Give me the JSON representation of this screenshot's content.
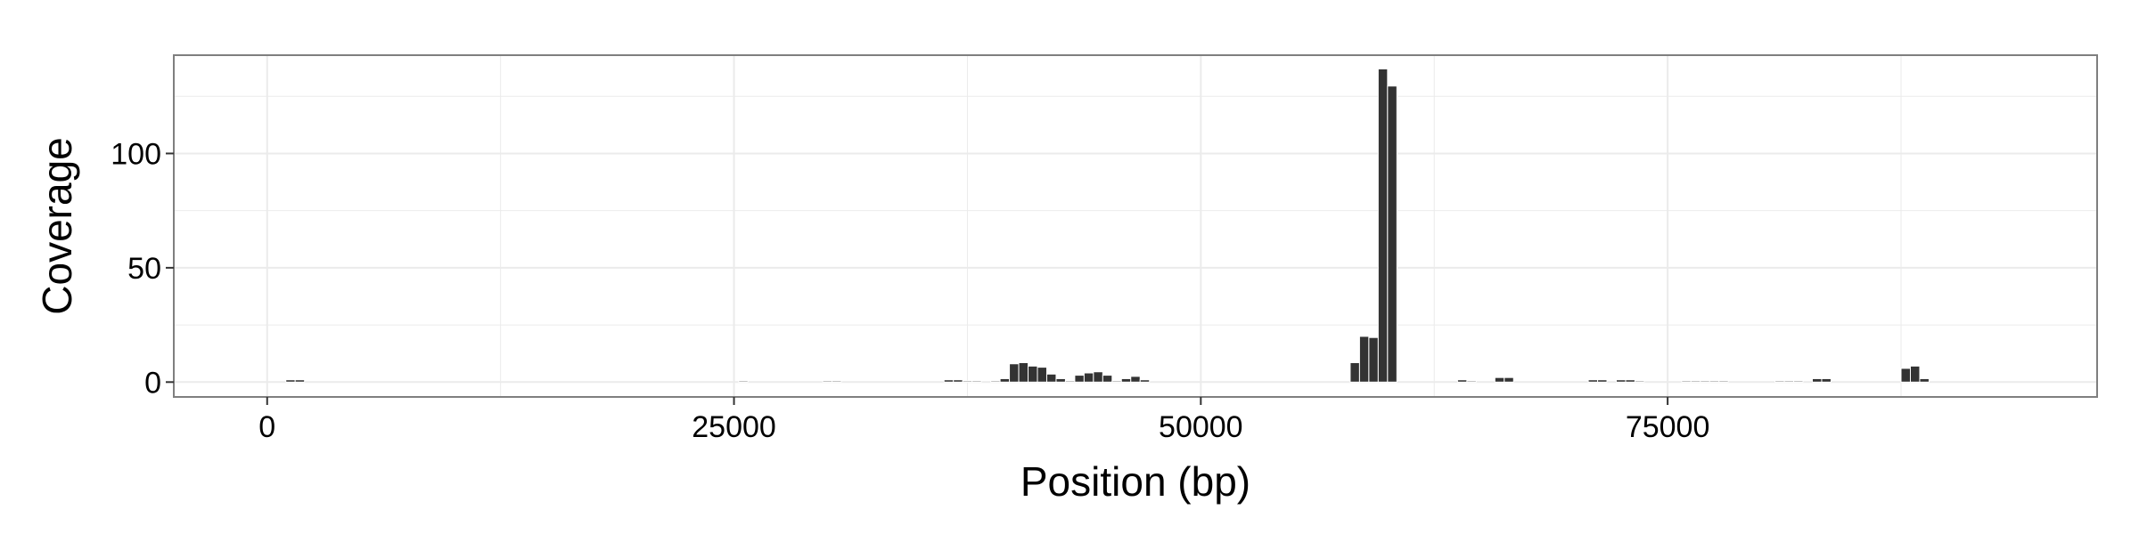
{
  "chart_data": {
    "type": "bar",
    "title": "",
    "xlabel": "Position (bp)",
    "ylabel": "Coverage",
    "xlim": [
      -5000,
      98000
    ],
    "ylim": [
      -6.5,
      143
    ],
    "x_ticks": [
      0,
      25000,
      50000,
      75000
    ],
    "x_tick_labels": [
      "0",
      "25000",
      "50000",
      "75000"
    ],
    "y_ticks": [
      0,
      50,
      100
    ],
    "y_tick_labels": [
      "0",
      "50",
      "100"
    ],
    "y_minor_ticks": [
      25,
      75,
      125
    ],
    "x_minor_ticks": [
      12500,
      37500,
      62500,
      87500
    ],
    "grid": true,
    "bar_width": 500,
    "bar_color": "#333333",
    "bar_outline_color": "#ffffff",
    "panel_border_color": "#7f7f7f",
    "grid_color": "#ebebeb",
    "x": [
      1250,
      1750,
      25500,
      30000,
      30500,
      36500,
      37000,
      37500,
      38000,
      39000,
      39500,
      40000,
      40500,
      41000,
      41500,
      42000,
      42500,
      43000,
      43500,
      44000,
      44500,
      45000,
      45500,
      46000,
      46500,
      47000,
      58250,
      58750,
      59250,
      59750,
      60250,
      64000,
      64500,
      66000,
      66500,
      71000,
      71500,
      72500,
      73000,
      73500,
      76000,
      76500,
      77000,
      77500,
      78000,
      81000,
      81500,
      82000,
      83000,
      83500,
      87750,
      88250,
      88750
    ],
    "values": [
      1,
      1,
      0.5,
      0.5,
      0.5,
      1,
      1,
      0.5,
      0.5,
      0.5,
      1.5,
      8,
      8.5,
      7,
      6.5,
      3.5,
      1.5,
      0.5,
      3,
      4,
      4.5,
      3,
      0.5,
      1.5,
      2.5,
      1,
      8.5,
      20,
      19.5,
      137,
      129.5,
      1,
      0.5,
      2,
      2,
      1,
      1,
      1,
      1,
      0.5,
      0.5,
      0.5,
      0.5,
      0.5,
      0.5,
      0.5,
      0.5,
      0.5,
      1.5,
      1.5,
      6,
      7,
      1.5
    ]
  }
}
